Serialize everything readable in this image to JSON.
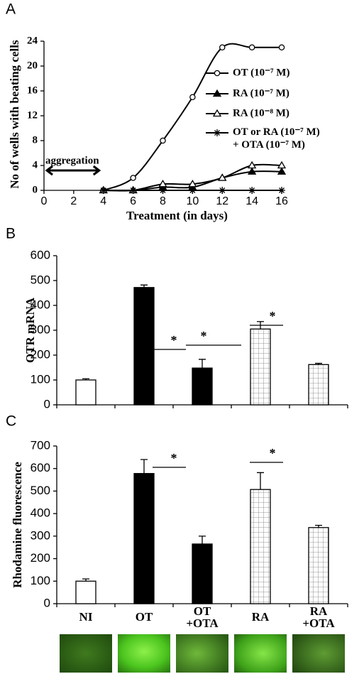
{
  "chart_data": [
    {
      "type": "line",
      "panel_label": "A",
      "y_label": "No of wells with beating cells",
      "x_label": "Treatment (in days)",
      "annotation": "aggregation",
      "x": [
        4,
        6,
        8,
        10,
        12,
        14,
        16
      ],
      "xlim": [
        0,
        16
      ],
      "xticks": [
        0,
        2,
        4,
        6,
        8,
        10,
        12,
        14,
        16
      ],
      "ylim": [
        0,
        24
      ],
      "yticks": [
        0,
        4,
        8,
        12,
        16,
        20,
        24
      ],
      "grid": false,
      "series": [
        {
          "name": "OT (10⁻⁷ M)",
          "color": "#000000",
          "marker": "open-circle",
          "smooth": true,
          "values": [
            0,
            2,
            8,
            15,
            23,
            23,
            23
          ]
        },
        {
          "name": "RA (10⁻⁷ M)",
          "color": "#000000",
          "marker": "filled-triangle",
          "smooth": true,
          "values": [
            0,
            0,
            0.5,
            0.5,
            2,
            3,
            3
          ]
        },
        {
          "name": "RA (10⁻⁸ M)",
          "color": "#000000",
          "marker": "open-triangle",
          "smooth": true,
          "values": [
            0,
            0,
            1,
            1,
            2,
            4,
            4
          ]
        },
        {
          "name": "OT or RA (10⁻⁷ M) + OTA (10⁻⁷ M)",
          "color": "#000000",
          "marker": "star",
          "smooth": false,
          "values": [
            0,
            0,
            0,
            0,
            0,
            0,
            0
          ]
        }
      ]
    },
    {
      "type": "bar",
      "panel_label": "B",
      "y_label": "OTR mRNA",
      "values": [
        100,
        472,
        148,
        305,
        162
      ],
      "errors": [
        5,
        10,
        35,
        30,
        5
      ],
      "fills": [
        "white",
        "black",
        "black",
        "grid",
        "grid"
      ],
      "ylim": [
        0,
        600
      ],
      "yticks": [
        0,
        100,
        200,
        300,
        400,
        500,
        600
      ],
      "annotations": [
        "*",
        "*",
        "*"
      ]
    },
    {
      "type": "bar",
      "panel_label": "C",
      "y_label": "Rhodamine fluorescence",
      "categories": [
        "NI",
        "OT",
        "OT +OTA",
        "RA",
        "RA +OTA"
      ],
      "values": [
        100,
        578,
        265,
        507,
        338
      ],
      "errors": [
        10,
        62,
        35,
        75,
        10
      ],
      "fills": [
        "white",
        "black",
        "black",
        "grid",
        "grid"
      ],
      "ylim": [
        0,
        700
      ],
      "yticks": [
        0,
        100,
        200,
        300,
        400,
        500,
        600,
        700
      ],
      "annotations": [
        "*",
        "*"
      ]
    }
  ]
}
